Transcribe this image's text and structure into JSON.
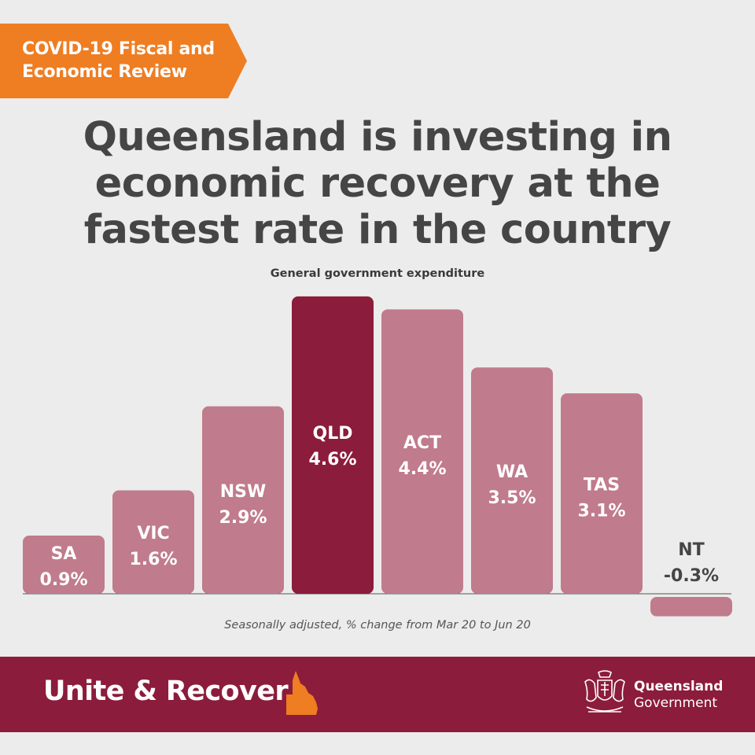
{
  "badge": {
    "line1": "COVID-19 Fiscal and",
    "line2": "Economic Review"
  },
  "headline": {
    "line1": "Queensland is investing in",
    "line2": "economic recovery at the",
    "line3": "fastest rate in the country"
  },
  "footer": {
    "slogan": "Unite & Recover",
    "govt_line1": "Queensland",
    "govt_line2": "Government"
  },
  "colors": {
    "badge": "#ef7d22",
    "highlight_bar": "#8c1c3b",
    "bar": "#c07b8c",
    "footer": "#8c1c3b",
    "background": "#ececec"
  },
  "icons": [
    "queensland-map-icon",
    "queensland-crest-icon"
  ],
  "chart_data": {
    "type": "bar",
    "title": "General government expenditure",
    "note": "Seasonally adjusted, % change from Mar 20 to Jun 20",
    "categories": [
      "SA",
      "VIC",
      "NSW",
      "QLD",
      "ACT",
      "WA",
      "TAS",
      "NT"
    ],
    "values": [
      0.9,
      1.6,
      2.9,
      4.6,
      4.4,
      3.5,
      3.1,
      -0.3
    ],
    "value_labels": [
      "0.9%",
      "1.6%",
      "2.9%",
      "4.6%",
      "4.4%",
      "3.5%",
      "3.1%",
      "-0.3%"
    ],
    "highlight": "QLD",
    "ylim": [
      -0.3,
      4.6
    ],
    "grid": false,
    "legend": "none"
  }
}
